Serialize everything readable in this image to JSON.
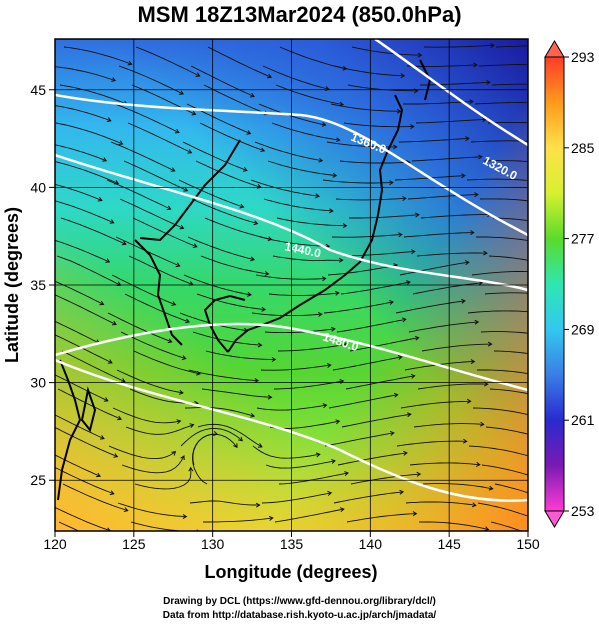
{
  "title": "MSM 18Z13Mar2024 (850.0hPa)",
  "xlabel": "Longitude (degrees)",
  "ylabel": "Latitude  (degrees)",
  "xticks": [
    "120",
    "125",
    "130",
    "135",
    "140",
    "145",
    "150"
  ],
  "yticks": [
    "25",
    "30",
    "35",
    "40",
    "45"
  ],
  "colorbar": {
    "labels": [
      "293",
      "285",
      "277",
      "269",
      "261",
      "253"
    ],
    "colors": [
      "#ff3c28",
      "#ff9a1c",
      "#ffe14a",
      "#d7f030",
      "#5adb2a",
      "#2fe6b0",
      "#33c8f0",
      "#3a7ee6",
      "#2a2ad0",
      "#7a1ab4",
      "#ff3cd2"
    ]
  },
  "contour_labels": [
    "1360.0",
    "1320.0",
    "1440.0",
    "1480.0"
  ],
  "credits": {
    "line1": "Drawing by DCL (https://www.gfd-dennou.org/library/dcl/)",
    "line2": "Data from http://database.rish.kyoto-u.ac.jp/arch/jmadata/"
  },
  "chart_data": {
    "type": "heatmap",
    "title": "MSM 18Z13Mar2024 (850.0hPa)",
    "xlabel": "Longitude (degrees)",
    "ylabel": "Latitude  (degrees)",
    "xlim": [
      120,
      150
    ],
    "ylim": [
      22.4,
      47.6
    ],
    "xticks": [
      120,
      125,
      130,
      135,
      140,
      145,
      150
    ],
    "yticks": [
      25,
      30,
      35,
      40,
      45
    ],
    "colorbar_range": [
      253,
      293
    ],
    "colorbar_ticks": [
      293,
      285,
      277,
      269,
      261,
      253
    ],
    "contour_levels": [
      1320.0,
      1360.0,
      1440.0,
      1480.0
    ],
    "grid": true,
    "overlay": "streamlines"
  }
}
